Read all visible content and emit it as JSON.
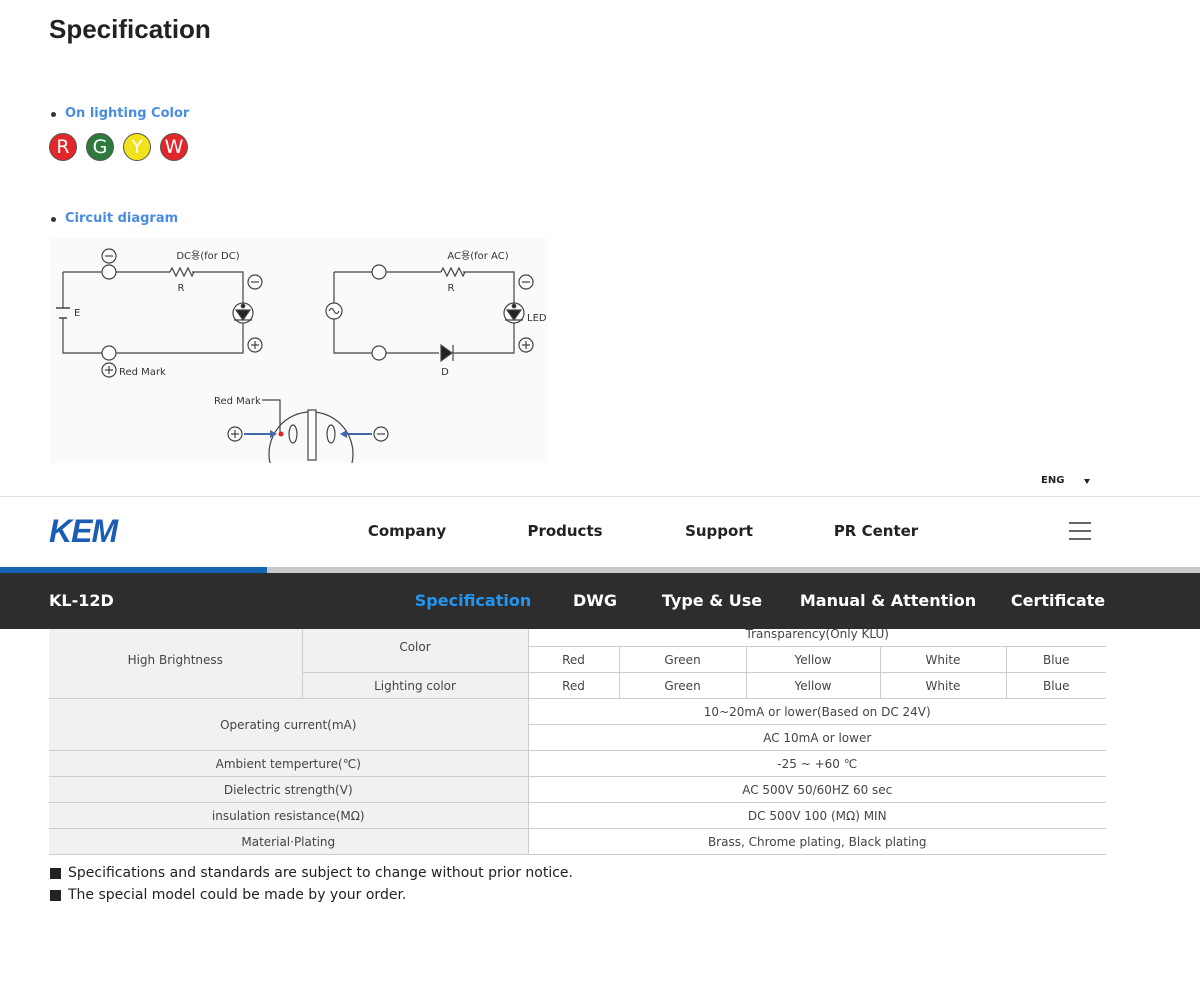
{
  "title": "Specification",
  "sections": [
    {
      "label": "On lighting Color",
      "colors": [
        "R",
        "G",
        "Y",
        "W"
      ]
    },
    {
      "label": "Circuit diagram",
      "labels": [
        "DC용(for DC)",
        "R",
        "E",
        "Red Mark",
        "AC용(for AC)",
        "R",
        "LED",
        "D",
        "Red Mark"
      ]
    }
  ],
  "header": {
    "language": "ENG",
    "logo": "KEM",
    "nav": [
      "Company",
      "Products",
      "Support",
      "PR Center"
    ]
  },
  "product": {
    "model": "KL-12D",
    "tabs": [
      "Specification",
      "DWG",
      "Type & Use",
      "Manual & Attention",
      "Certificate"
    ]
  },
  "table": {
    "rows": [
      [
        "High Brightness",
        "Color",
        "Transparency(Only KLU)"
      ],
      [
        "Red",
        "Green",
        "Yellow",
        "White",
        "Blue"
      ],
      [
        "Lighting color",
        "Red",
        "Green",
        "Yellow",
        "White",
        "Blue"
      ],
      [
        "Operating current(mA)",
        "10~20mA or lower(Based on DC 24V)"
      ],
      [
        "AC 10mA or lower"
      ],
      [
        "Ambient temperture(℃)",
        "-25 ~ +60 ℃"
      ],
      [
        "Dielectric strength(V)",
        "AC 500V 50/60HZ 60 sec"
      ],
      [
        "insulation resistance(MΩ)",
        "DC 500V 100 (MΩ) MIN"
      ],
      [
        "Material·Plating",
        "Brass, Chrome plating, Black plating"
      ]
    ]
  },
  "notes": [
    "Specifications and standards are subject to change without prior notice.",
    "The special model could be made by your order."
  ]
}
